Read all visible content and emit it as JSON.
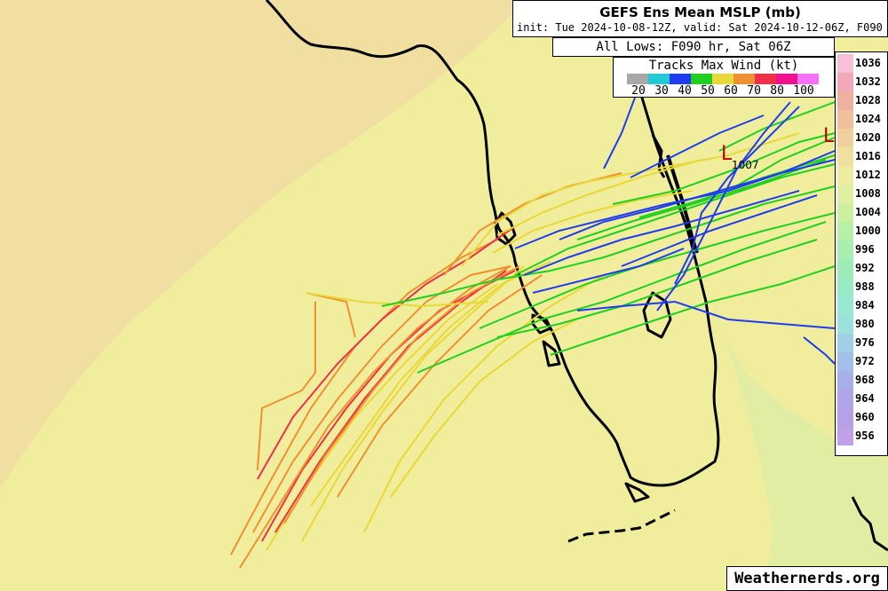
{
  "title": "GEFS Ens Mean MSLP (mb)",
  "subtitle": "init: Tue 2024-10-08-12Z, valid: Sat 2024-10-12-06Z, F090 hr",
  "lows_label": "All Lows: F090 hr, Sat 06Z",
  "tracks_legend": {
    "title": "Tracks Max Wind (kt)",
    "ticks": [
      "20",
      "30",
      "40",
      "50",
      "60",
      "70",
      "80",
      "100"
    ],
    "colors": [
      "#a8a8a8",
      "#20c8d8",
      "#1f3cf0",
      "#20d020",
      "#e8d838",
      "#f09030",
      "#f03048",
      "#f01090",
      "#f870f8"
    ]
  },
  "mslp_scale": {
    "labels": [
      "1036",
      "1032",
      "1028",
      "1024",
      "1020",
      "1016",
      "1012",
      "1008",
      "1004",
      "1000",
      "996",
      "992",
      "988",
      "984",
      "980",
      "976",
      "972",
      "968",
      "964",
      "960",
      "956"
    ],
    "colors": [
      "#f6c0d8",
      "#f2a8b8",
      "#f0b0a0",
      "#f0c09c",
      "#f0d09c",
      "#f0e0a0",
      "#eeeca0",
      "#e0f0a0",
      "#ccf0a0",
      "#b8f0a8",
      "#a8eeb0",
      "#9cecb8",
      "#98eac4",
      "#98e8d4",
      "#9ce0e0",
      "#a0d0e8",
      "#a4c0ea",
      "#a8b0ec",
      "#b0a4ea",
      "#b8a0e8",
      "#c0a0e8"
    ]
  },
  "lows": [
    {
      "symbol": "L",
      "value": "1007"
    },
    {
      "symbol": "L",
      "value": ""
    }
  ],
  "credit": "Weathernerds.org"
}
